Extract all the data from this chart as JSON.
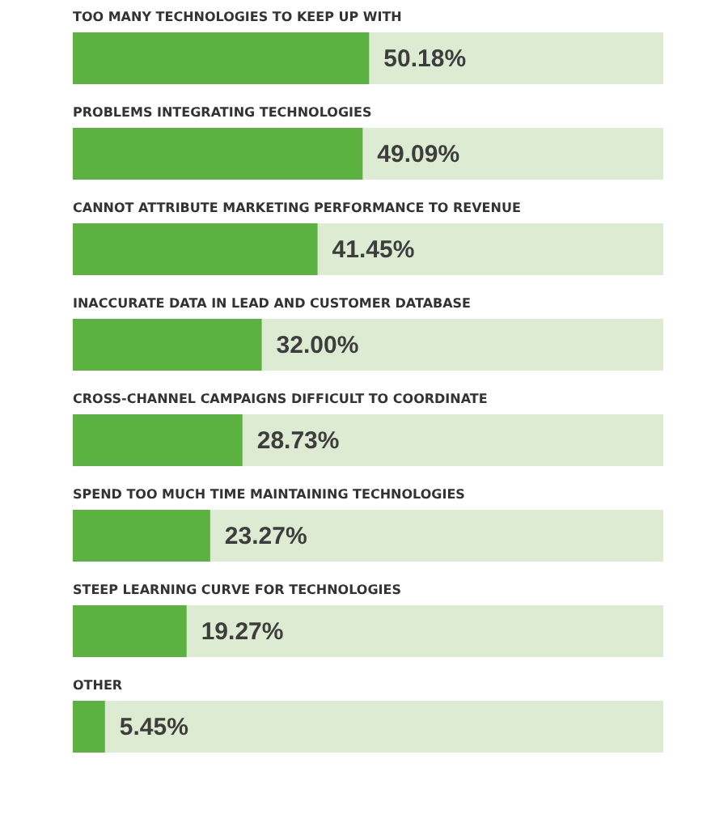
{
  "chart_data": {
    "type": "bar",
    "orientation": "horizontal",
    "categories": [
      "TOO MANY TECHNOLOGIES TO KEEP UP WITH",
      "PROBLEMS INTEGRATING TECHNOLOGIES",
      "CANNOT ATTRIBUTE MARKETING PERFORMANCE TO REVENUE",
      "INACCURATE DATA IN LEAD AND CUSTOMER DATABASE",
      "CROSS-CHANNEL CAMPAIGNS DIFFICULT TO COORDINATE",
      "SPEND TOO MUCH TIME MAINTAINING TECHNOLOGIES",
      "STEEP LEARNING CURVE FOR TECHNOLOGIES",
      "OTHER"
    ],
    "values": [
      50.18,
      49.09,
      41.45,
      32.0,
      28.73,
      23.27,
      19.27,
      5.45
    ],
    "value_labels": [
      "50.18%",
      "49.09%",
      "41.45%",
      "32.00%",
      "28.73%",
      "23.27%",
      "19.27%",
      "5.45%"
    ],
    "color": "#5cb240",
    "xlim": [
      0,
      100
    ],
    "tick_labels": false
  }
}
